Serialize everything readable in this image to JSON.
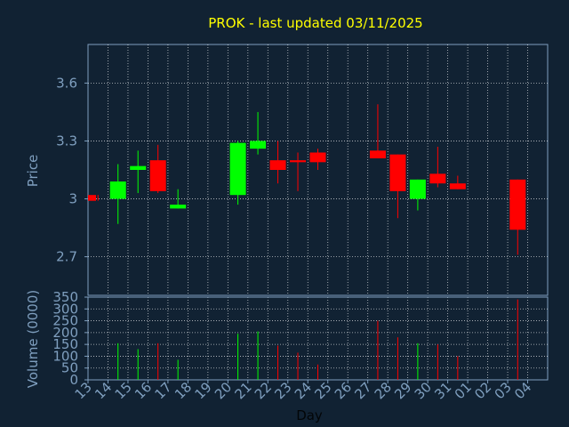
{
  "colors": {
    "background": "#112233",
    "axis": "#7f9fbf",
    "grid": "#ffffff",
    "title": "#ffff00",
    "up": "#00ff00",
    "down": "#ff0000"
  },
  "chart_data": {
    "type": "candlestick",
    "title": "PROK - last updated 03/11/2025",
    "xlabel": "Day",
    "categories": [
      "13",
      "14",
      "15",
      "16",
      "17",
      "18",
      "19",
      "20",
      "21",
      "22",
      "23",
      "24",
      "25",
      "26",
      "27",
      "28",
      "29",
      "30",
      "31",
      "01",
      "02",
      "03",
      "04"
    ],
    "price": {
      "ylabel": "Price",
      "ylim": [
        2.5,
        3.8
      ],
      "yticks": [
        "2.7",
        "3",
        "3.3",
        "3.6"
      ],
      "ytick_values": [
        2.7,
        3.0,
        3.3,
        3.6
      ],
      "candles": [
        {
          "day": "13",
          "open": 3.02,
          "high": 3.02,
          "low": 2.99,
          "close": 2.99
        },
        {
          "day": "14",
          "open": 3.0,
          "high": 3.18,
          "low": 2.87,
          "close": 3.09
        },
        {
          "day": "15",
          "open": 3.15,
          "high": 3.25,
          "low": 3.03,
          "close": 3.17
        },
        {
          "day": "16",
          "open": 3.2,
          "high": 3.28,
          "low": 3.03,
          "close": 3.04
        },
        {
          "day": "17",
          "open": 2.95,
          "high": 3.05,
          "low": 2.95,
          "close": 2.97
        },
        {
          "day": "20",
          "open": 3.02,
          "high": 3.3,
          "low": 2.97,
          "close": 3.29
        },
        {
          "day": "21",
          "open": 3.26,
          "high": 3.45,
          "low": 3.23,
          "close": 3.3
        },
        {
          "day": "22",
          "open": 3.2,
          "high": 3.3,
          "low": 3.08,
          "close": 3.15
        },
        {
          "day": "23",
          "open": 3.2,
          "high": 3.24,
          "low": 3.04,
          "close": 3.19
        },
        {
          "day": "24",
          "open": 3.24,
          "high": 3.26,
          "low": 3.15,
          "close": 3.19
        },
        {
          "day": "27",
          "open": 3.25,
          "high": 3.49,
          "low": 3.21,
          "close": 3.21
        },
        {
          "day": "28",
          "open": 3.23,
          "high": 3.23,
          "low": 2.9,
          "close": 3.04
        },
        {
          "day": "29",
          "open": 3.0,
          "high": 3.1,
          "low": 2.94,
          "close": 3.1
        },
        {
          "day": "30",
          "open": 3.13,
          "high": 3.27,
          "low": 3.06,
          "close": 3.08
        },
        {
          "day": "31",
          "open": 3.08,
          "high": 3.12,
          "low": 3.05,
          "close": 3.05
        },
        {
          "day": "03",
          "open": 3.1,
          "high": 3.1,
          "low": 2.71,
          "close": 2.84
        }
      ]
    },
    "volume": {
      "ylabel": "Volume (0000)",
      "ylim": [
        0,
        350
      ],
      "yticks": [
        "0",
        "50",
        "100",
        "150",
        "200",
        "250",
        "300",
        "350"
      ],
      "ytick_values": [
        0,
        50,
        100,
        150,
        200,
        250,
        300,
        350
      ],
      "bars": [
        {
          "day": "13",
          "value": 0
        },
        {
          "day": "14",
          "value": 155
        },
        {
          "day": "15",
          "value": 130
        },
        {
          "day": "16",
          "value": 155
        },
        {
          "day": "17",
          "value": 85
        },
        {
          "day": "20",
          "value": 195
        },
        {
          "day": "21",
          "value": 205
        },
        {
          "day": "22",
          "value": 145
        },
        {
          "day": "23",
          "value": 115
        },
        {
          "day": "24",
          "value": 65
        },
        {
          "day": "27",
          "value": 250
        },
        {
          "day": "28",
          "value": 180
        },
        {
          "day": "29",
          "value": 155
        },
        {
          "day": "30",
          "value": 150
        },
        {
          "day": "31",
          "value": 100
        },
        {
          "day": "03",
          "value": 340
        }
      ]
    },
    "grid": true
  }
}
